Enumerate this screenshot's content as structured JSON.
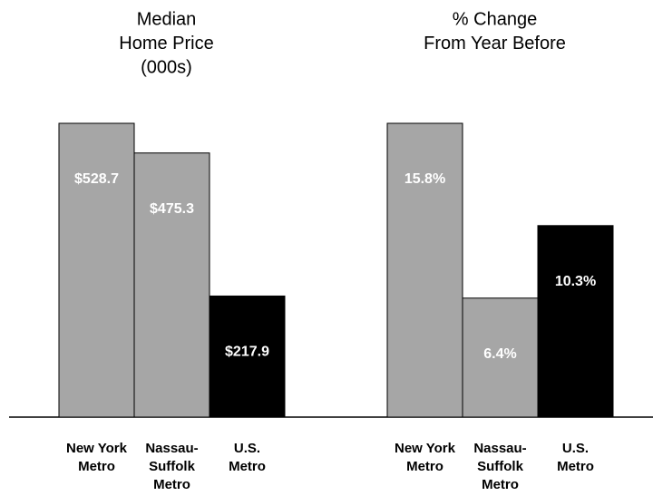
{
  "chart_data": [
    {
      "type": "bar",
      "title": [
        "Median",
        "Home Price",
        "(000s)"
      ],
      "categories": [
        [
          "New York",
          "Metro"
        ],
        [
          "Nassau-",
          "Suffolk",
          "Metro"
        ],
        [
          "U.S.",
          "Metro"
        ]
      ],
      "values": [
        528.7,
        475.3,
        217.9
      ],
      "value_labels": [
        "$528.7",
        "$475.3",
        "$217.9"
      ],
      "colors": [
        "#a6a6a6",
        "#a6a6a6",
        "#000000"
      ]
    },
    {
      "type": "bar",
      "title": [
        "% Change",
        "From Year Before"
      ],
      "categories": [
        [
          "New York",
          "Metro"
        ],
        [
          "Nassau-",
          "Suffolk",
          "Metro"
        ],
        [
          "U.S.",
          "Metro"
        ]
      ],
      "values": [
        15.8,
        6.4,
        10.3
      ],
      "value_labels": [
        "15.8%",
        "6.4%",
        "10.3%"
      ],
      "colors": [
        "#a6a6a6",
        "#a6a6a6",
        "#000000"
      ]
    }
  ]
}
